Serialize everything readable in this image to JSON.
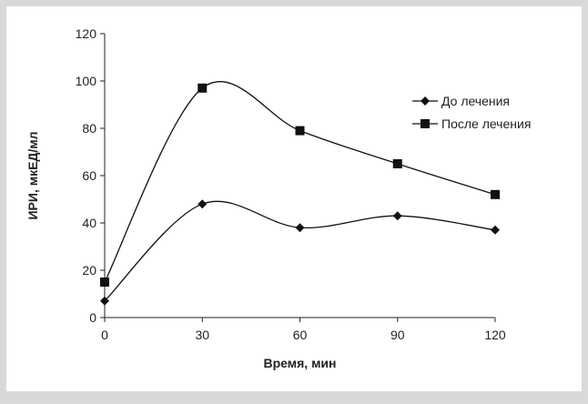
{
  "chart_data": {
    "type": "line",
    "x": [
      0,
      30,
      60,
      90,
      120
    ],
    "xticks": [
      "0",
      "30",
      "60",
      "90",
      "120"
    ],
    "yticks": [
      "0",
      "20",
      "40",
      "60",
      "80",
      "100",
      "120"
    ],
    "xlim": [
      0,
      120
    ],
    "ylim": [
      0,
      120
    ],
    "xlabel": "Время, мин",
    "ylabel": "ИРИ, мкЕД/мл",
    "grid": false,
    "legend_position": "right",
    "smooth": true,
    "series": [
      {
        "name": "До лечения",
        "marker": "diamond",
        "color": "#111111",
        "values": [
          7,
          48,
          38,
          43,
          37
        ]
      },
      {
        "name": "После лечения",
        "marker": "square",
        "color": "#111111",
        "values": [
          15,
          97,
          79,
          65,
          52
        ]
      }
    ]
  }
}
